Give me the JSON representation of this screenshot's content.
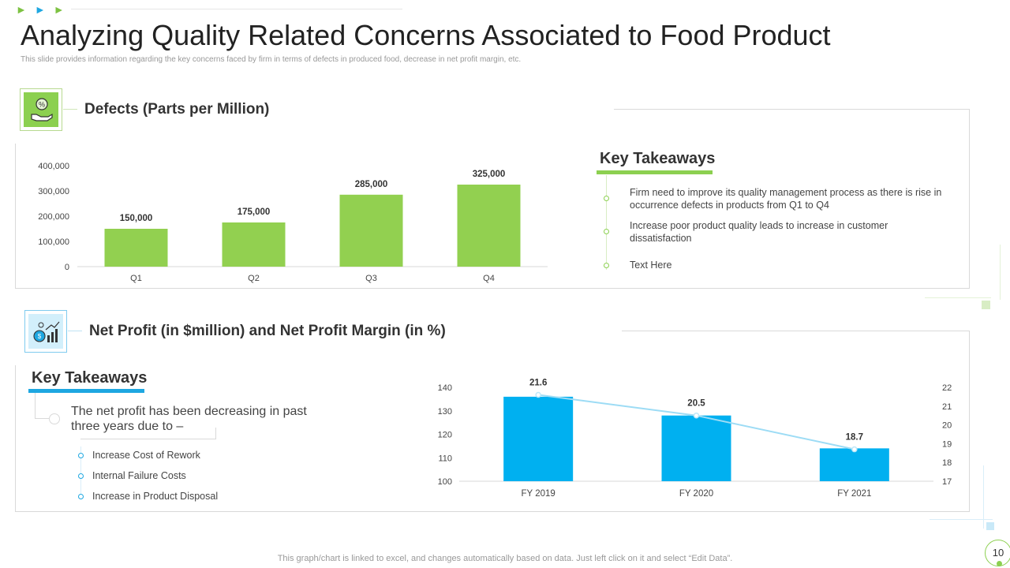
{
  "title": "Analyzing Quality Related Concerns Associated to Food Product",
  "subtitle": "This slide provides information regarding the key concerns faced by firm in terms of defects in produced food, decrease in net profit margin, etc.",
  "defects_section": {
    "title": "Defects (Parts per Million)",
    "key_takeaways": {
      "title": "Key Takeaways",
      "items": [
        "Firm need to improve  its quality management  process as there is rise in occurrence defects in products from Q1 to Q4",
        "Increase poor product quality leads to increase in customer dissatisfaction",
        "Text Here"
      ]
    }
  },
  "profit_section": {
    "title": "Net Profit (in $million) and Net Profit Margin (in %)",
    "key_takeaways": {
      "title": "Key Takeaways",
      "intro": "The net profit has been decreasing in past three years due to –",
      "items": [
        "Increase Cost of Rework",
        "Internal Failure Costs",
        "Increase in Product Disposal"
      ]
    }
  },
  "footer": "This graph/chart is linked to excel,  and changes automatically based on data. Just left click on it and select “Edit Data”.",
  "page_number": "10",
  "colors": {
    "green": "#92d050",
    "blue": "#00b0f0",
    "line": "#9ddcf5"
  },
  "icons": [
    "percent-hand-icon",
    "money-growth-icon"
  ],
  "chart_data": [
    {
      "type": "bar",
      "title": "Defects (Parts per Million)",
      "categories": [
        "Q1",
        "Q2",
        "Q3",
        "Q4"
      ],
      "values": [
        150000,
        175000,
        285000,
        325000
      ],
      "value_labels": [
        "150,000",
        "175,000",
        "285,000",
        "325,000"
      ],
      "yticks": [
        "0",
        "100,000",
        "200,000",
        "300,000",
        "400,000"
      ],
      "ylim": [
        0,
        400000
      ],
      "color": "#92d050"
    },
    {
      "type": "bar",
      "title": "Net Profit (in $million) and Net Profit Margin (in %)",
      "categories": [
        "FY 2019",
        "FY 2020",
        "FY 2021"
      ],
      "series": [
        {
          "name": "Net Profit",
          "type": "bar",
          "axis": "left",
          "values": [
            136,
            128,
            114
          ],
          "color": "#00b0f0"
        },
        {
          "name": "Net Profit Margin",
          "type": "line",
          "axis": "right",
          "values": [
            21.6,
            20.5,
            18.7
          ],
          "value_labels": [
            "21.6",
            "20.5",
            "18.7"
          ],
          "color": "#9ddcf5"
        }
      ],
      "left_yticks": [
        "100",
        "110",
        "120",
        "130",
        "140"
      ],
      "left_ylim": [
        100,
        140
      ],
      "right_yticks": [
        "17",
        "18",
        "19",
        "20",
        "21",
        "22"
      ],
      "right_ylim": [
        17,
        22
      ]
    }
  ]
}
